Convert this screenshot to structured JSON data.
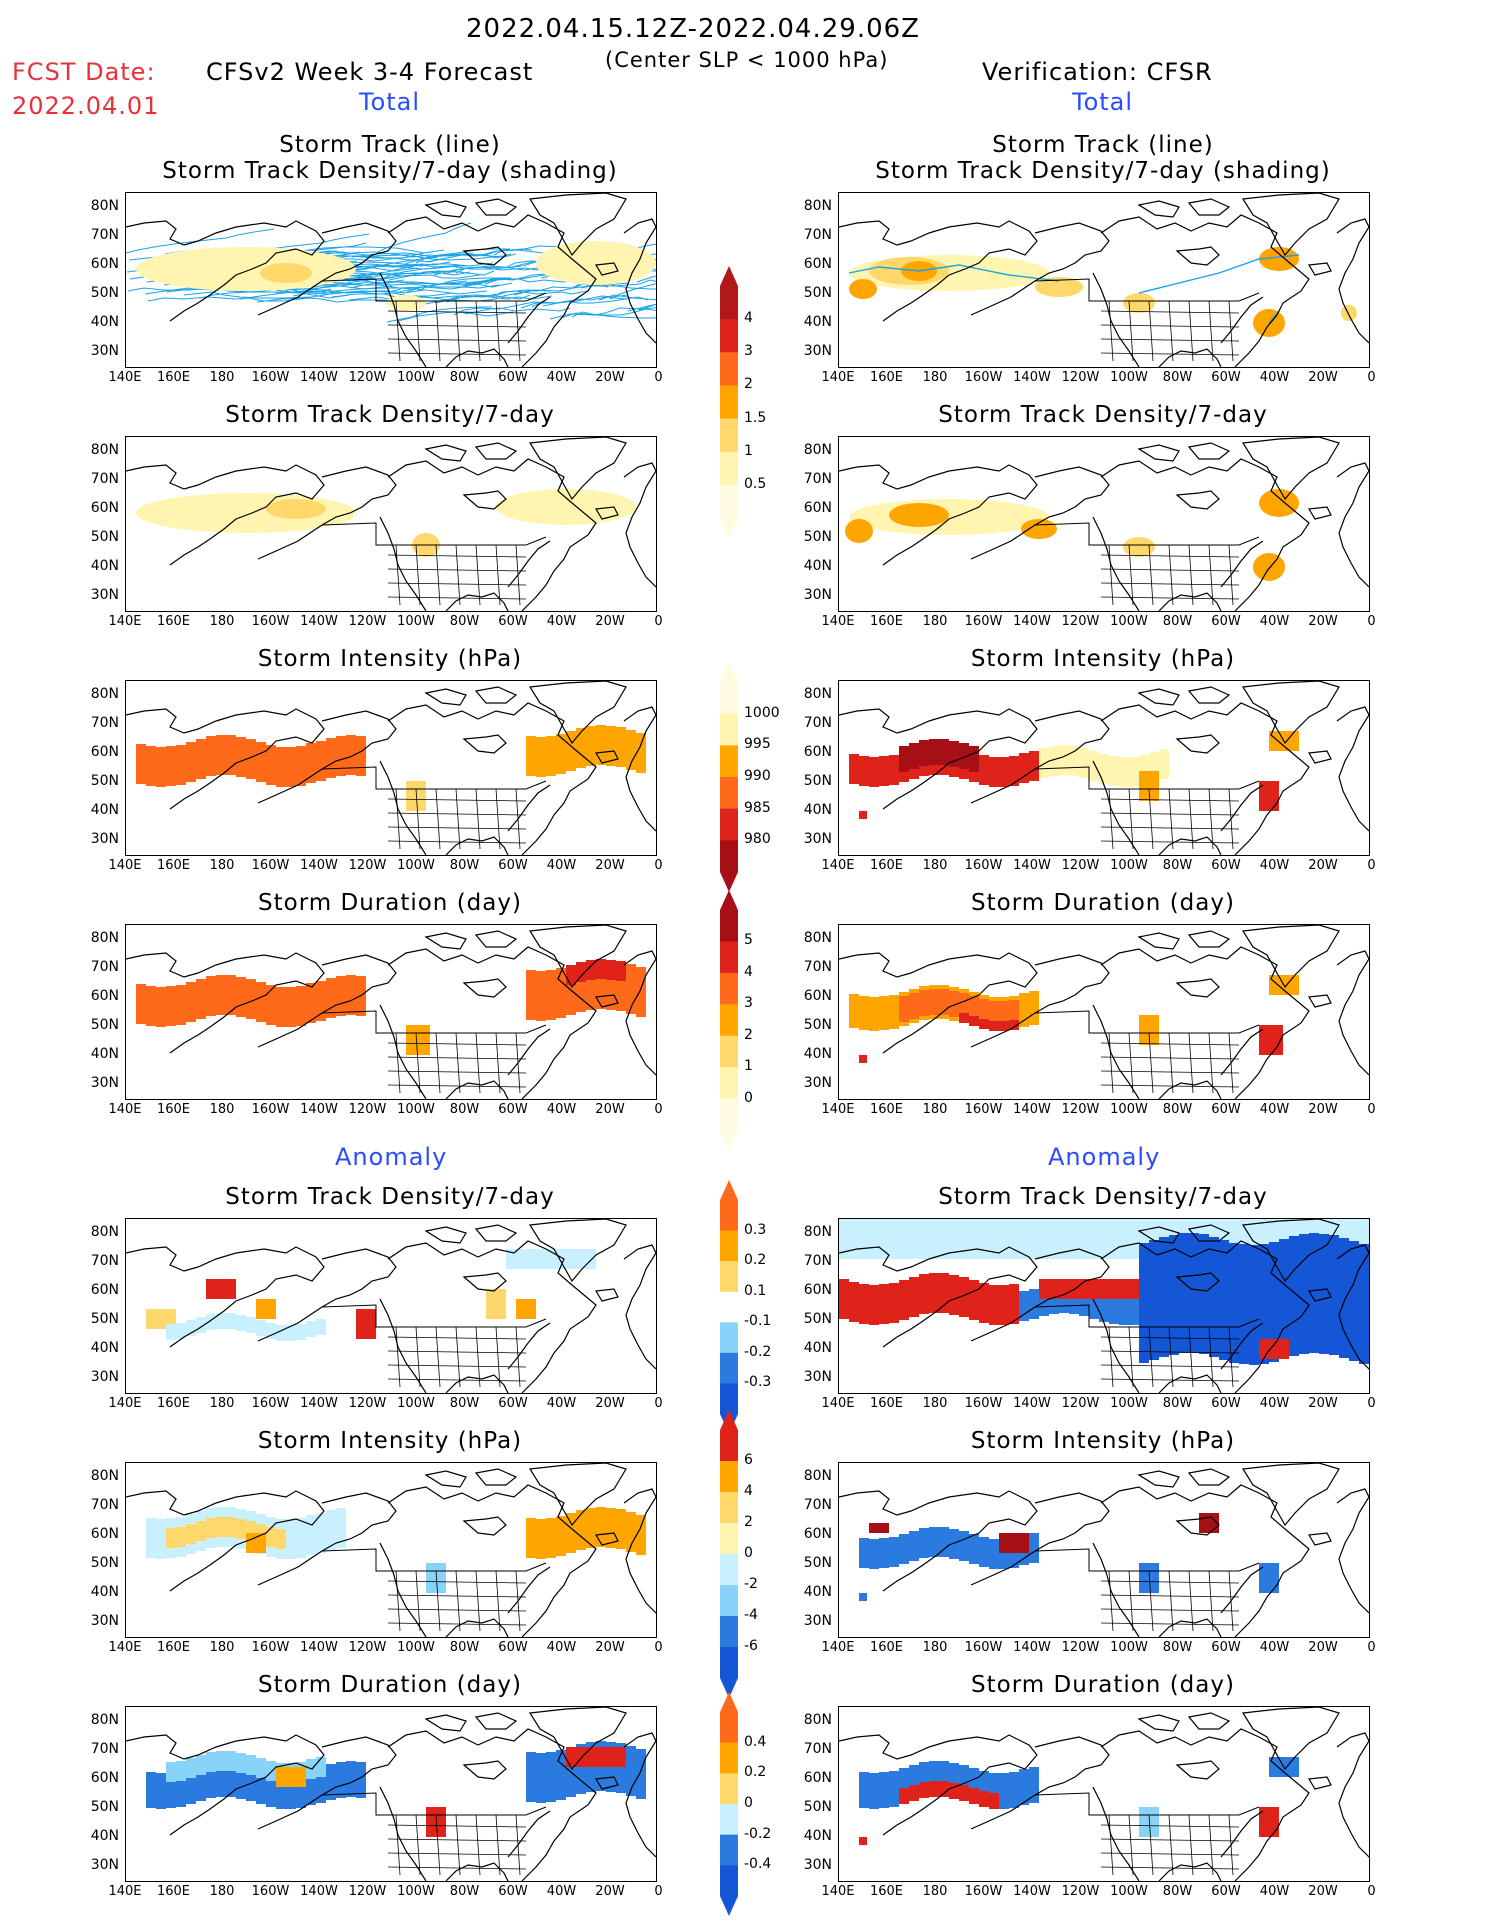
{
  "header": {
    "period": "2022.04.15.12Z-2022.04.29.06Z",
    "criteria": "(Center SLP < 1000 hPa)",
    "fcst_date_label": "FCST Date:",
    "fcst_date": "2022.04.01",
    "left_model": "CFSv2 Week 3-4 Forecast",
    "right_model": "Verification: CFSR"
  },
  "sections": {
    "total": "Total",
    "anomaly": "Anomaly"
  },
  "panel_titles": {
    "track_line": "Storm Track (line)",
    "track_shading": "Storm Track Density/7-day (shading)",
    "density": "Storm Track Density/7-day",
    "intensity": "Storm Intensity (hPa)",
    "duration": "Storm Duration (day)"
  },
  "axes": {
    "lat_labels": [
      "80N",
      "70N",
      "60N",
      "50N",
      "40N",
      "30N"
    ],
    "lon_labels": [
      "140E",
      "160E",
      "180",
      "160W",
      "140W",
      "120W",
      "100W",
      "80W",
      "60W",
      "40W",
      "20W",
      "0"
    ]
  },
  "colorbars": {
    "density_total": [
      "4",
      "3",
      "2",
      "1.5",
      "1",
      "0.5"
    ],
    "intensity_total": [
      "1000",
      "995",
      "990",
      "985",
      "980"
    ],
    "duration_total": [
      "5",
      "4",
      "3",
      "2",
      "1",
      "0"
    ],
    "density_anom": [
      "0.3",
      "0.2",
      "0.1",
      "-0.1",
      "-0.2",
      "-0.3"
    ],
    "intensity_anom": [
      "6",
      "4",
      "2",
      "0",
      "-2",
      "-4",
      "-6"
    ],
    "duration_anom": [
      "0.4",
      "0.2",
      "0",
      "-0.2",
      "-0.4"
    ]
  },
  "colors": {
    "yellow_light": "#fff5b0",
    "yellow": "#ffd86b",
    "orange": "#ffa500",
    "orange_dark": "#ff6a1a",
    "red": "#e0231a",
    "darkred": "#a50f15",
    "cyan_light": "#c8f0ff",
    "cyan": "#87d4f8",
    "blue": "#2a7ae0",
    "blue_dark": "#1556d6",
    "track_line": "#1aa3e8"
  }
}
